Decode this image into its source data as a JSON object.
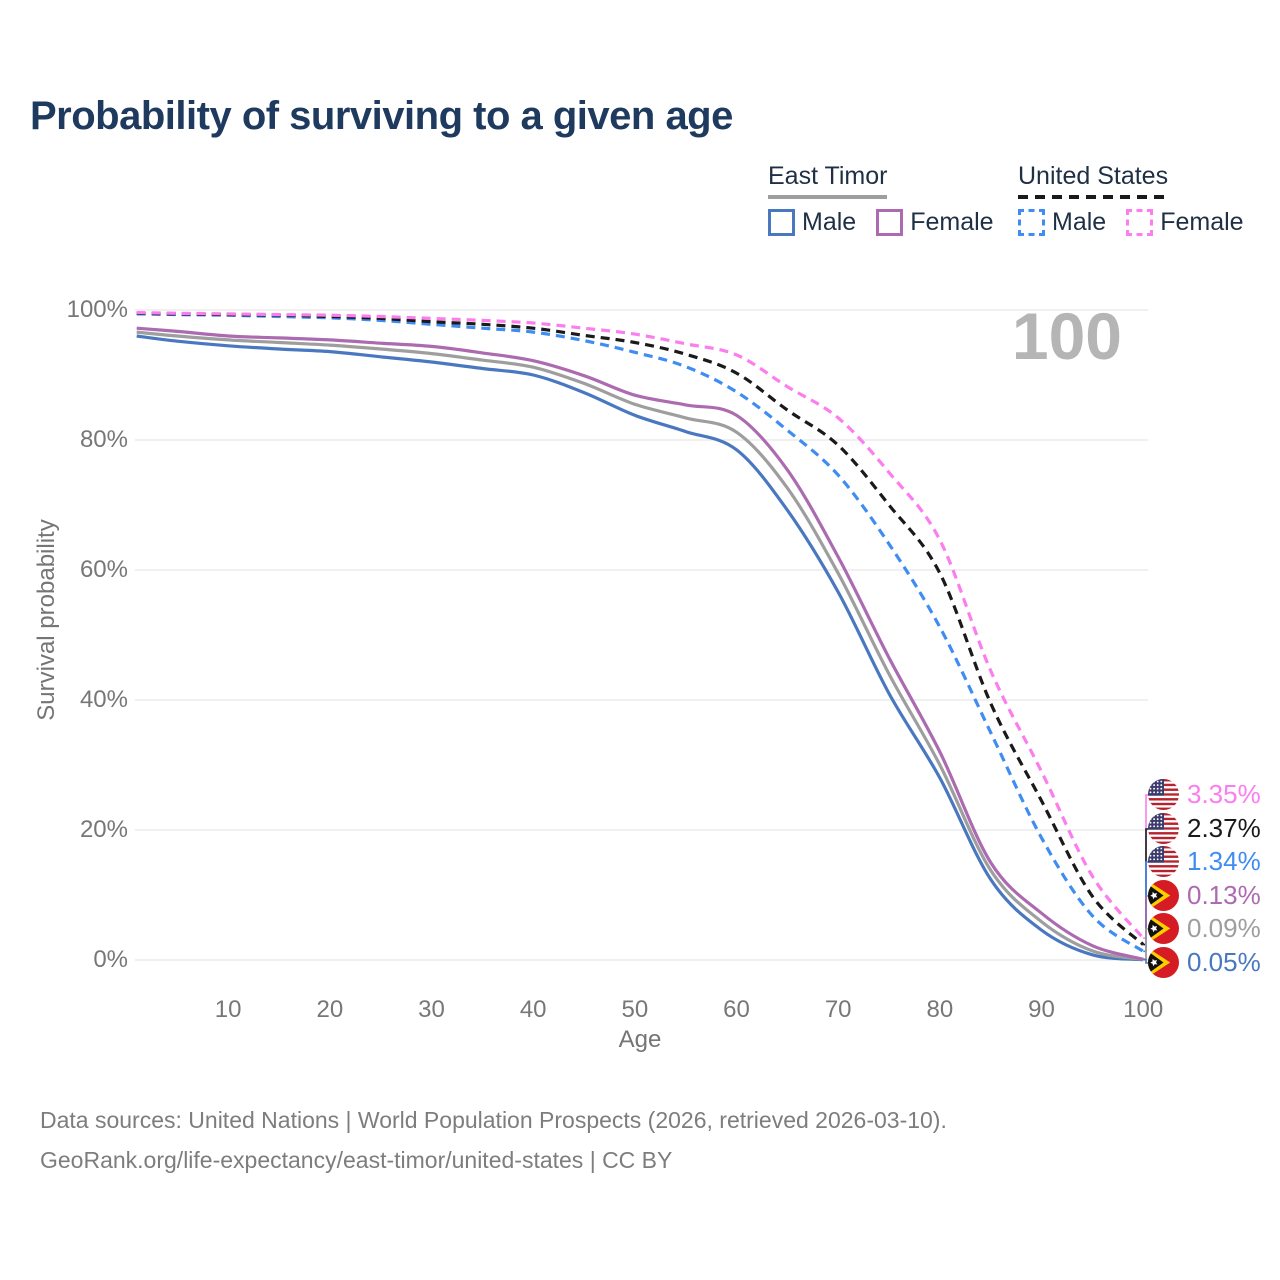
{
  "title": "Probability of surviving to a given age",
  "watermark": "100",
  "legend": {
    "groups": [
      {
        "country": "East Timor",
        "style": "solid",
        "line_color": "#9e9e9e",
        "items": [
          {
            "label": "Male",
            "color": "#4a78c0"
          },
          {
            "label": "Female",
            "color": "#ac6bb0"
          }
        ]
      },
      {
        "country": "United States",
        "style": "dashed",
        "line_color": "#1a1a1a",
        "items": [
          {
            "label": "Male",
            "color": "#3f8df2"
          },
          {
            "label": "Female",
            "color": "#fb7dee"
          }
        ]
      }
    ]
  },
  "axes": {
    "y": {
      "title": "Survival probability",
      "ticks": [
        "0%",
        "20%",
        "40%",
        "60%",
        "80%",
        "100%"
      ],
      "tick_values": [
        0,
        20,
        40,
        60,
        80,
        100
      ]
    },
    "x": {
      "title": "Age",
      "ticks": [
        "10",
        "20",
        "30",
        "40",
        "50",
        "60",
        "70",
        "80",
        "90",
        "100"
      ],
      "tick_values": [
        10,
        20,
        30,
        40,
        50,
        60,
        70,
        80,
        90,
        100
      ]
    }
  },
  "end_labels": [
    {
      "value": "3.35%",
      "flag": "united-states",
      "series": "United States Female",
      "color": "#fb7dee"
    },
    {
      "value": "2.37%",
      "flag": "united-states",
      "series": "United States Both",
      "color": "#1a1a1a"
    },
    {
      "value": "1.34%",
      "flag": "united-states",
      "series": "United States Male",
      "color": "#3f8df2"
    },
    {
      "value": "0.13%",
      "flag": "east-timor",
      "series": "East Timor Female",
      "color": "#ac6bb0"
    },
    {
      "value": "0.09%",
      "flag": "east-timor",
      "series": "East Timor Both",
      "color": "#9e9e9e"
    },
    {
      "value": "0.05%",
      "flag": "east-timor",
      "series": "East Timor Male",
      "color": "#4a78c0"
    }
  ],
  "footer": {
    "line1": "Data sources: United Nations | World Population Prospects (2026, retrieved 2026-03-10).",
    "line2": "GeoRank.org/life-expectancy/east-timor/united-states | CC BY"
  },
  "chart_data": {
    "type": "line",
    "title": "Probability of surviving to a given age",
    "xlabel": "Age",
    "ylabel": "Survival probability",
    "xlim": [
      0,
      100
    ],
    "ylim": [
      0,
      100
    ],
    "grid": "horizontal",
    "legend_position": "top-right",
    "x": [
      1,
      5,
      10,
      15,
      20,
      25,
      30,
      35,
      40,
      45,
      50,
      55,
      60,
      65,
      70,
      75,
      80,
      85,
      90,
      95,
      100
    ],
    "series": [
      {
        "name": "East Timor Male",
        "country": "East Timor",
        "sex": "Male",
        "dash": "solid",
        "color": "#4a78c0",
        "values": [
          96.0,
          95.2,
          94.5,
          94.0,
          93.6,
          92.8,
          92.0,
          91.0,
          90.0,
          87.3,
          83.8,
          81.3,
          78.5,
          69.2,
          56.6,
          41.0,
          28.0,
          12.4,
          4.6,
          0.8,
          0.05
        ]
      },
      {
        "name": "East Timor Both",
        "country": "East Timor",
        "sex": "Both",
        "dash": "solid",
        "color": "#9e9e9e",
        "values": [
          96.6,
          96.0,
          95.4,
          95.0,
          94.6,
          94.0,
          93.3,
          92.3,
          91.2,
          88.7,
          85.5,
          83.4,
          81.2,
          72.6,
          59.5,
          44.0,
          30.0,
          13.8,
          5.9,
          1.4,
          0.09
        ]
      },
      {
        "name": "East Timor Female",
        "country": "East Timor",
        "sex": "Female",
        "dash": "solid",
        "color": "#ac6bb0",
        "values": [
          97.2,
          96.7,
          96.0,
          95.7,
          95.4,
          94.9,
          94.4,
          93.4,
          92.2,
          89.9,
          86.9,
          85.4,
          83.8,
          75.4,
          62.0,
          46.5,
          32.0,
          15.0,
          7.2,
          2.2,
          0.13
        ]
      },
      {
        "name": "United States Male",
        "country": "United States",
        "sex": "Male",
        "dash": "dashed",
        "color": "#3f8df2",
        "values": [
          99.4,
          99.3,
          99.2,
          99.0,
          98.8,
          98.4,
          97.8,
          97.2,
          96.6,
          95.3,
          93.5,
          91.3,
          87.4,
          81.5,
          74.6,
          64.0,
          51.2,
          35.0,
          18.8,
          6.8,
          1.34
        ]
      },
      {
        "name": "United States Both",
        "country": "United States",
        "sex": "Both",
        "dash": "dashed",
        "color": "#1a1a1a",
        "values": [
          99.5,
          99.4,
          99.3,
          99.2,
          99.0,
          98.7,
          98.2,
          97.8,
          97.2,
          96.1,
          95.0,
          93.2,
          90.3,
          84.6,
          79.2,
          70.0,
          59.5,
          39.5,
          24.5,
          9.8,
          2.37
        ]
      },
      {
        "name": "United States Female",
        "country": "United States",
        "sex": "Female",
        "dash": "dashed",
        "color": "#fb7dee",
        "values": [
          99.6,
          99.5,
          99.4,
          99.3,
          99.2,
          99.0,
          98.7,
          98.4,
          98.0,
          97.2,
          96.3,
          94.8,
          93.1,
          88.2,
          83.4,
          75.0,
          64.6,
          44.5,
          29.0,
          12.9,
          3.35
        ]
      }
    ],
    "end_values": {
      "United States Female": 3.35,
      "United States Both": 2.37,
      "United States Male": 1.34,
      "East Timor Female": 0.13,
      "East Timor Both": 0.09,
      "East Timor Male": 0.05
    },
    "hover_age_indicator": "100"
  }
}
